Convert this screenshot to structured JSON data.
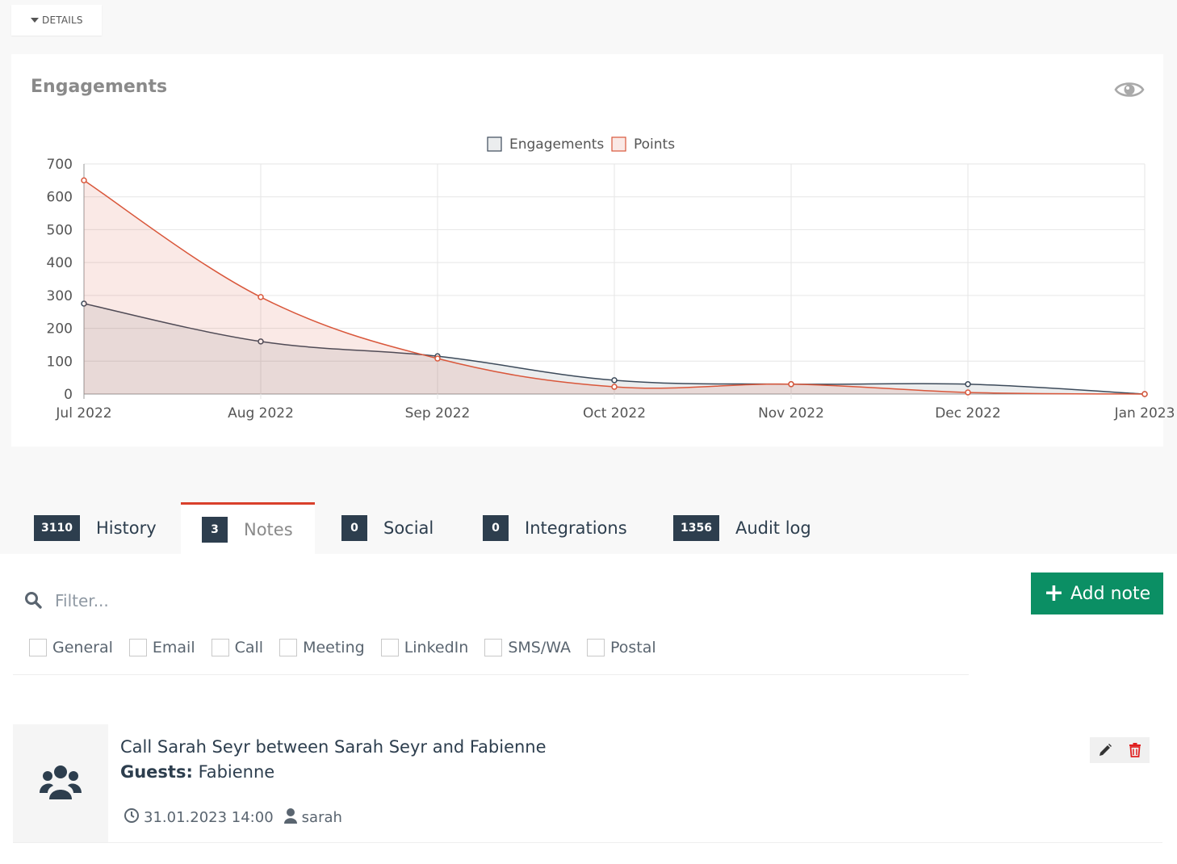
{
  "details": {
    "label": "DETAILS"
  },
  "panel": {
    "title": "Engagements",
    "toggle_icon": "eye-icon"
  },
  "chart_data": {
    "type": "area",
    "title": "",
    "xlabel": "",
    "ylabel": "",
    "x": [
      "Jul 2022",
      "Aug 2022",
      "Sep 2022",
      "Oct 2022",
      "Nov 2022",
      "Dec 2022",
      "Jan 2023"
    ],
    "yticks": [
      0,
      100,
      200,
      300,
      400,
      500,
      600,
      700
    ],
    "ylim": [
      0,
      700
    ],
    "grid": true,
    "legend_position": "top",
    "series": [
      {
        "name": "Engagements",
        "values": [
          275,
          160,
          115,
          42,
          30,
          30,
          0
        ],
        "color": "#3c4a5a",
        "fill": "rgba(60,74,90,0.10)"
      },
      {
        "name": "Points",
        "values": [
          650,
          295,
          108,
          22,
          30,
          5,
          0
        ],
        "color": "#d9573b",
        "fill": "rgba(217,87,59,0.13)"
      }
    ]
  },
  "tabs": [
    {
      "count": "3110",
      "label": "History",
      "active": false
    },
    {
      "count": "3",
      "label": "Notes",
      "active": true
    },
    {
      "count": "0",
      "label": "Social",
      "active": false
    },
    {
      "count": "0",
      "label": "Integrations",
      "active": false
    },
    {
      "count": "1356",
      "label": "Audit log",
      "active": false
    }
  ],
  "filter": {
    "placeholder": "Filter...",
    "value": ""
  },
  "add_note": {
    "label": "Add note"
  },
  "types": [
    "General",
    "Email",
    "Call",
    "Meeting",
    "LinkedIn",
    "SMS/WA",
    "Postal"
  ],
  "note": {
    "title": "Call Sarah Seyr between Sarah Seyr and Fabienne",
    "guests_label": "Guests:",
    "guests": "Fabienne",
    "datetime": "31.01.2023 14:00",
    "author": "sarah"
  },
  "colors": {
    "accent": "#d9402b",
    "primary": "#2d3e4e",
    "success": "#0b8f64",
    "danger": "#e02020"
  }
}
